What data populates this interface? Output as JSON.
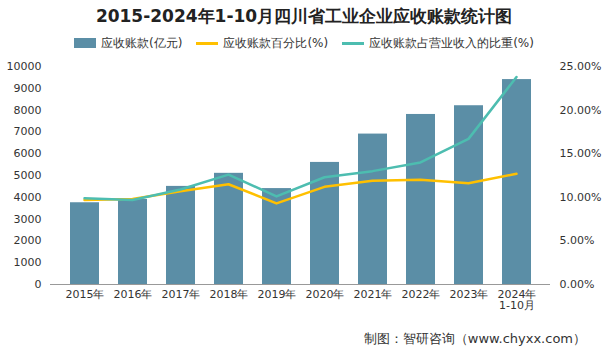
{
  "chart_data": {
    "type": "bar",
    "title": "2015-2024年1-10月四川省工业企业应收账款统计图",
    "caption": "制图：智研咨询（www.chyxx.com）",
    "categories": [
      "2015年",
      "2016年",
      "2017年",
      "2018年",
      "2019年",
      "2020年",
      "2021年",
      "2022年",
      "2023年",
      "2024年\n1-10月"
    ],
    "series": [
      {
        "name": "应收账款(亿元)",
        "type": "bar",
        "color": "#5b8ea6",
        "values": [
          3750,
          3900,
          4500,
          5100,
          4400,
          5600,
          6900,
          7800,
          8200,
          9400
        ]
      },
      {
        "name": "应收账款百分比(%)",
        "type": "line",
        "axis": "y2",
        "color": "#ffc000",
        "values": [
          9.7,
          9.8,
          10.7,
          11.5,
          9.3,
          11.2,
          11.9,
          12.0,
          11.6,
          12.7
        ]
      },
      {
        "name": "应收账款占营业收入的比重(%)",
        "type": "line",
        "axis": "y2",
        "color": "#4dbdb0",
        "values": [
          9.9,
          9.7,
          10.9,
          12.6,
          10.1,
          12.3,
          13.0,
          14.0,
          16.7,
          23.8
        ]
      }
    ],
    "ylim": [
      0,
      10000
    ],
    "yticks": [
      0,
      1000,
      2000,
      3000,
      4000,
      5000,
      6000,
      7000,
      8000,
      9000,
      10000
    ],
    "y2lim": [
      0,
      25
    ],
    "y2ticks": [
      {
        "value": 0,
        "label": "0.00%"
      },
      {
        "value": 5,
        "label": "5.00%"
      },
      {
        "value": 10,
        "label": "10.00%"
      },
      {
        "value": 15,
        "label": "15.00%"
      },
      {
        "value": 20,
        "label": "20.00%"
      },
      {
        "value": 25,
        "label": "25.00%"
      }
    ],
    "legend": "top",
    "grid": false
  }
}
